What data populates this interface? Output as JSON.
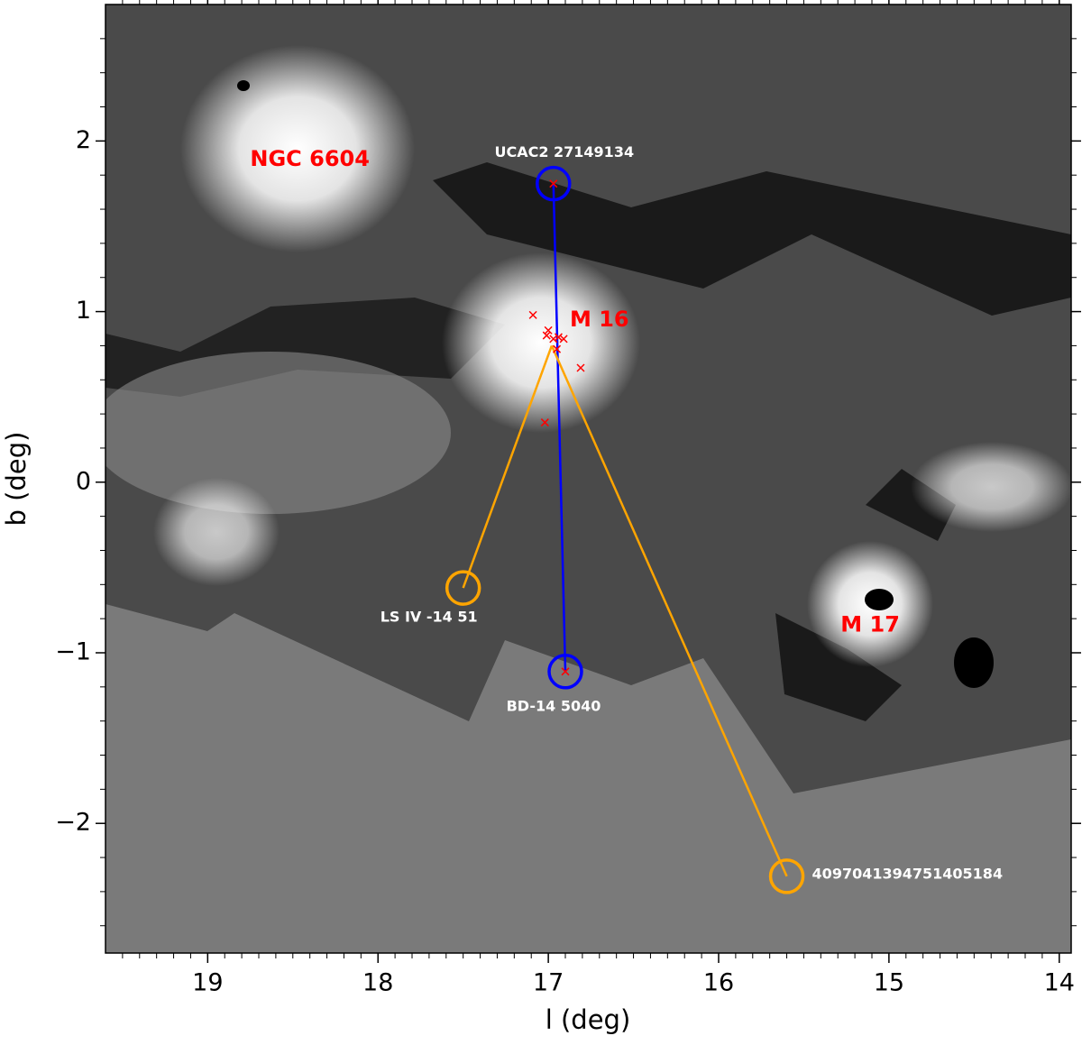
{
  "chart_data": {
    "type": "scatter",
    "xlabel": "l (deg)",
    "ylabel": "b (deg)",
    "xlim": [
      19.6,
      13.93
    ],
    "ylim": [
      -2.76,
      2.8
    ],
    "xticks": [
      19,
      18,
      17,
      16,
      15,
      14
    ],
    "yticks": [
      {
        "value": -2,
        "label": "−2"
      },
      {
        "value": -1,
        "label": "−1"
      },
      0,
      1,
      2
    ],
    "annotations": [
      {
        "text": "NGC 6604",
        "x": 18.4,
        "y": 1.89
      },
      {
        "text": "M 16",
        "x": 16.7,
        "y": 0.95
      },
      {
        "text": "M 17",
        "x": 15.11,
        "y": -0.84
      }
    ],
    "members": {
      "color": "#ff0000",
      "x": [
        17.09,
        17.0,
        17.01,
        16.97,
        16.94,
        16.91,
        16.95,
        17.02,
        16.81,
        16.97,
        16.9
      ],
      "y": [
        0.98,
        0.89,
        0.86,
        0.84,
        0.85,
        0.84,
        0.78,
        0.35,
        0.67,
        1.75,
        -1.11
      ]
    },
    "cluster_center": {
      "x": 16.98,
      "y": 0.8
    },
    "stars": [
      {
        "name": "UCAC2 27149134",
        "x": 16.97,
        "y": 1.75,
        "color": "#0000ff"
      },
      {
        "name": "BD-14 5040",
        "x": 16.9,
        "y": -1.11,
        "color": "#0000ff"
      },
      {
        "name": "LS IV -14 51",
        "x": 17.5,
        "y": -0.62,
        "color": "#ffa500"
      },
      {
        "name": "4097041394751405184",
        "x": 15.6,
        "y": -2.31,
        "color": "#ffa500"
      }
    ]
  }
}
